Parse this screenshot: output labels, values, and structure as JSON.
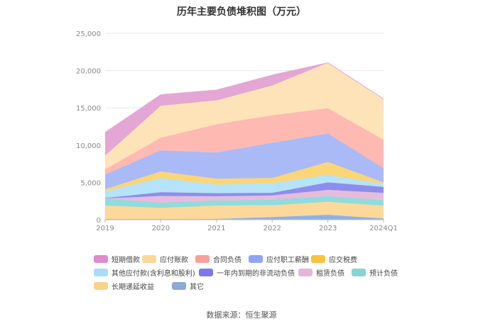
{
  "title": "历年主要负债堆积图（万元）",
  "source": "数据来源：恒生聚源",
  "chart_data": {
    "type": "area",
    "stacked": true,
    "x": [
      "2019",
      "2020",
      "2021",
      "2022",
      "2023",
      "2024Q1"
    ],
    "ylim": [
      0,
      25000
    ],
    "yticks": [
      "0",
      "5,000",
      "10,000",
      "15,000",
      "20,000",
      "25,000"
    ],
    "grid": true,
    "legend_position": "bottom",
    "series": [
      {
        "name": "其它",
        "color": "#8fb0e6",
        "values": [
          80,
          80,
          100,
          350,
          650,
          150
        ]
      },
      {
        "name": "长期递延收益",
        "color": "#fcd89a",
        "values": [
          1820,
          1500,
          1800,
          1600,
          1750,
          1750
        ]
      },
      {
        "name": "预计负债",
        "color": "#8fdcdc",
        "values": [
          900,
          700,
          650,
          700,
          750,
          700
        ]
      },
      {
        "name": "租赁负债",
        "color": "#e6bcdc",
        "values": [
          50,
          900,
          600,
          600,
          850,
          1000
        ]
      },
      {
        "name": "一年内到期的非流动负债",
        "color": "#8d8deb",
        "values": [
          50,
          500,
          400,
          350,
          1000,
          800
        ]
      },
      {
        "name": "其他应付款(含利息和股利)",
        "color": "#b5e3fa",
        "values": [
          900,
          1900,
          1150,
          1300,
          1000,
          400
        ]
      },
      {
        "name": "应交税费",
        "color": "#fbd677",
        "values": [
          300,
          900,
          800,
          700,
          1750,
          200
        ]
      },
      {
        "name": "应付职工薪酬",
        "color": "#a9baf7",
        "values": [
          1950,
          2800,
          3500,
          4700,
          3800,
          1900
        ]
      },
      {
        "name": "合同负债",
        "color": "#fdb9b2",
        "values": [
          700,
          1700,
          3800,
          3700,
          3400,
          3800
        ]
      },
      {
        "name": "应付账款",
        "color": "#fde3b7",
        "values": [
          1850,
          4300,
          3200,
          4000,
          6100,
          5500
        ]
      },
      {
        "name": "短期借款",
        "color": "#e4a6d4",
        "values": [
          3100,
          1500,
          1400,
          1400,
          0,
          0
        ]
      }
    ]
  },
  "legend_rows": [
    [
      "短期借款",
      "应付账款",
      "合同负债",
      "应付职工薪酬",
      "应交税费"
    ],
    [
      "其他应付款(含利息和股利)",
      "一年内到期的非流动负债",
      "租赁负债",
      "预计负债"
    ],
    [
      "长期递延收益",
      "其它"
    ]
  ],
  "colors": {
    "短期借款": "#e08ccb",
    "应付账款": "#fcd89a",
    "合同负债": "#f8a09a",
    "应付职工薪酬": "#8ea4f6",
    "应交税费": "#fbc23c",
    "其他应付款(含利息和股利)": "#a8ddf7",
    "一年内到期的非流动负债": "#7d78e9",
    "租赁负债": "#e6b6da",
    "预计负债": "#86d5d3",
    "长期递延收益": "#f9d38b",
    "其它": "#8aaad8"
  }
}
